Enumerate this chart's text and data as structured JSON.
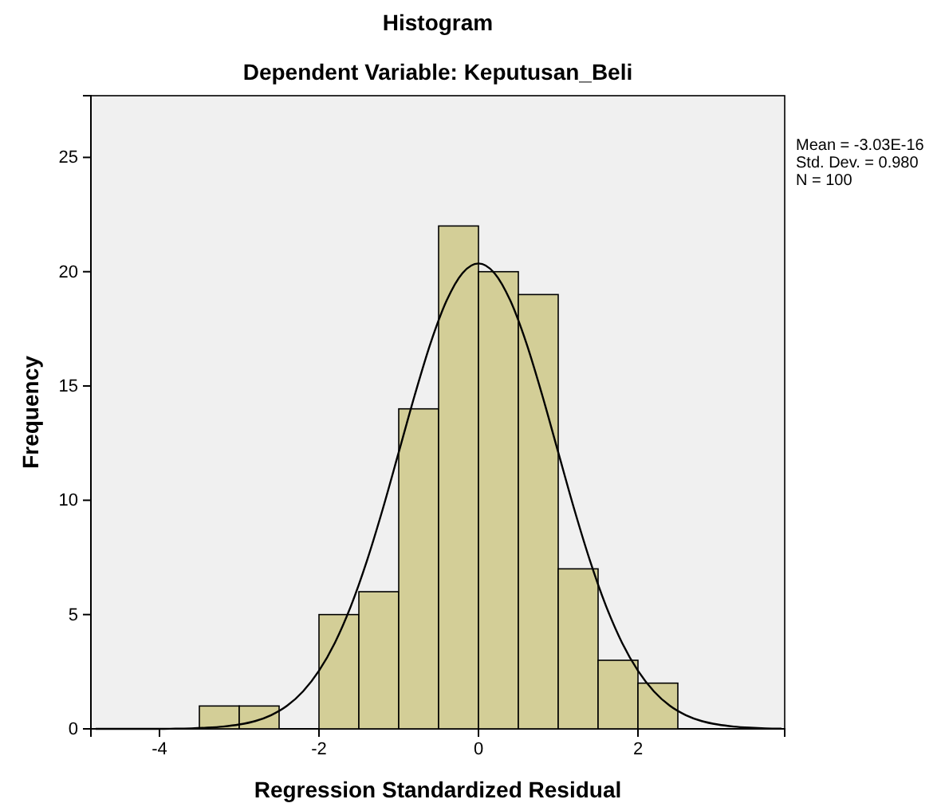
{
  "chart_data": {
    "type": "histogram",
    "title": "Histogram",
    "subtitle": "Dependent Variable: Keputusan_Beli",
    "xlabel": "Regression Standardized Residual",
    "ylabel": "Frequency",
    "bins": [
      -3.5,
      -3,
      -2.5,
      -2,
      -1.5,
      -1,
      -0.5,
      0,
      0.5,
      1,
      1.5,
      2,
      2.5
    ],
    "series": [
      {
        "color": "#d3ce97",
        "values": [
          1,
          1,
          0,
          5,
          6,
          14,
          22,
          20,
          19,
          7,
          3,
          2
        ]
      },
      {
        "type": "line",
        "color": "#000000",
        "x": [
          -4.8,
          -4.4,
          -4,
          -3.8,
          -3.6,
          -3.4,
          -3.2,
          -3,
          -2.8,
          -2.6,
          -2.4,
          -2.2,
          -2,
          -1.8,
          -1.6,
          -1.4,
          -1.2,
          -1,
          -0.8,
          -0.6,
          -0.4,
          -0.2,
          0,
          0.2,
          0.4,
          0.6,
          0.8,
          1,
          1.2,
          1.4,
          1.6,
          1.8,
          2,
          2.2,
          2.4,
          2.6,
          2.8,
          3,
          3.2,
          3.4,
          3.6,
          3.8
        ],
        "values": [
          0,
          0,
          0,
          0.01,
          0.02,
          0.05,
          0.1,
          0.19,
          0.34,
          0.6,
          1.01,
          1.64,
          2.54,
          3.77,
          5.37,
          7.34,
          9.62,
          12.1,
          14.59,
          16.88,
          18.73,
          19.94,
          20.36,
          19.94,
          18.73,
          16.88,
          14.59,
          12.1,
          9.62,
          7.34,
          5.37,
          3.77,
          2.54,
          1.64,
          1.01,
          0.6,
          0.34,
          0.19,
          0.1,
          0.05,
          0.02,
          0.01
        ]
      }
    ],
    "xlim": [
      -4.86,
      3.84
    ],
    "xticks": [
      -4,
      -2,
      0,
      2
    ],
    "ylim": [
      0,
      27.7
    ],
    "yticks": [
      0,
      5,
      10,
      15,
      20,
      25
    ],
    "annotations": [
      "Mean = -3.03E-16",
      "Std. Dev. = 0.980",
      "N = 100"
    ]
  }
}
